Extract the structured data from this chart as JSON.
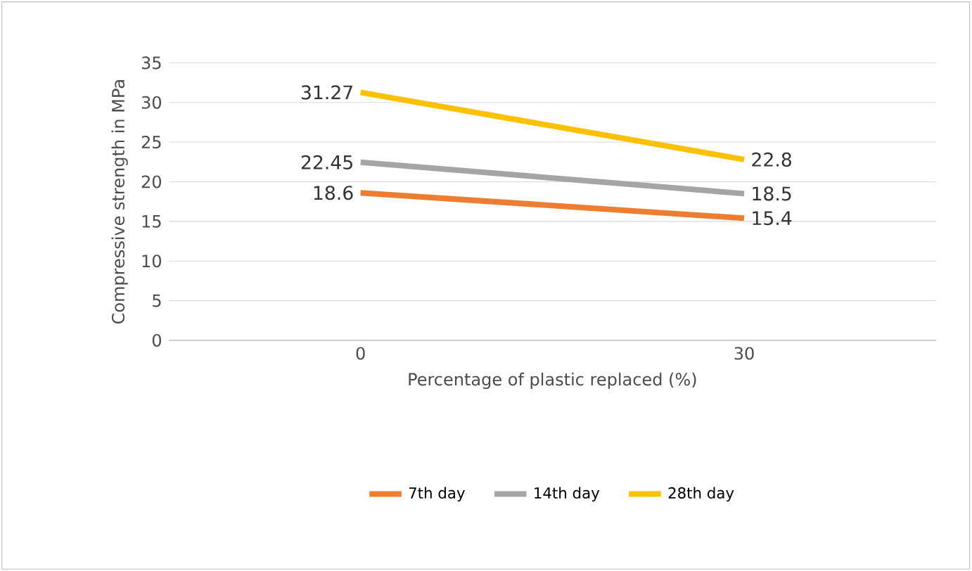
{
  "chart_data": {
    "type": "line",
    "xlabel": "Percentage of plastic replaced (%)",
    "ylabel": "Compressive strength in MPa",
    "categories": [
      "0",
      "30"
    ],
    "series": [
      {
        "name": "7th day",
        "color": "#ed7d31",
        "values": [
          18.6,
          15.4
        ]
      },
      {
        "name": "14th day",
        "color": "#a5a5a5",
        "values": [
          22.45,
          18.5
        ]
      },
      {
        "name": "28th day",
        "color": "#ffc000",
        "values": [
          31.27,
          22.8
        ]
      }
    ],
    "ylim": [
      0,
      35
    ],
    "yticks": [
      0,
      5,
      10,
      15,
      20,
      25,
      30,
      35
    ],
    "grid": "y",
    "legend": "bottom",
    "data_labels": true,
    "marker": "none",
    "line_style": "solid"
  }
}
